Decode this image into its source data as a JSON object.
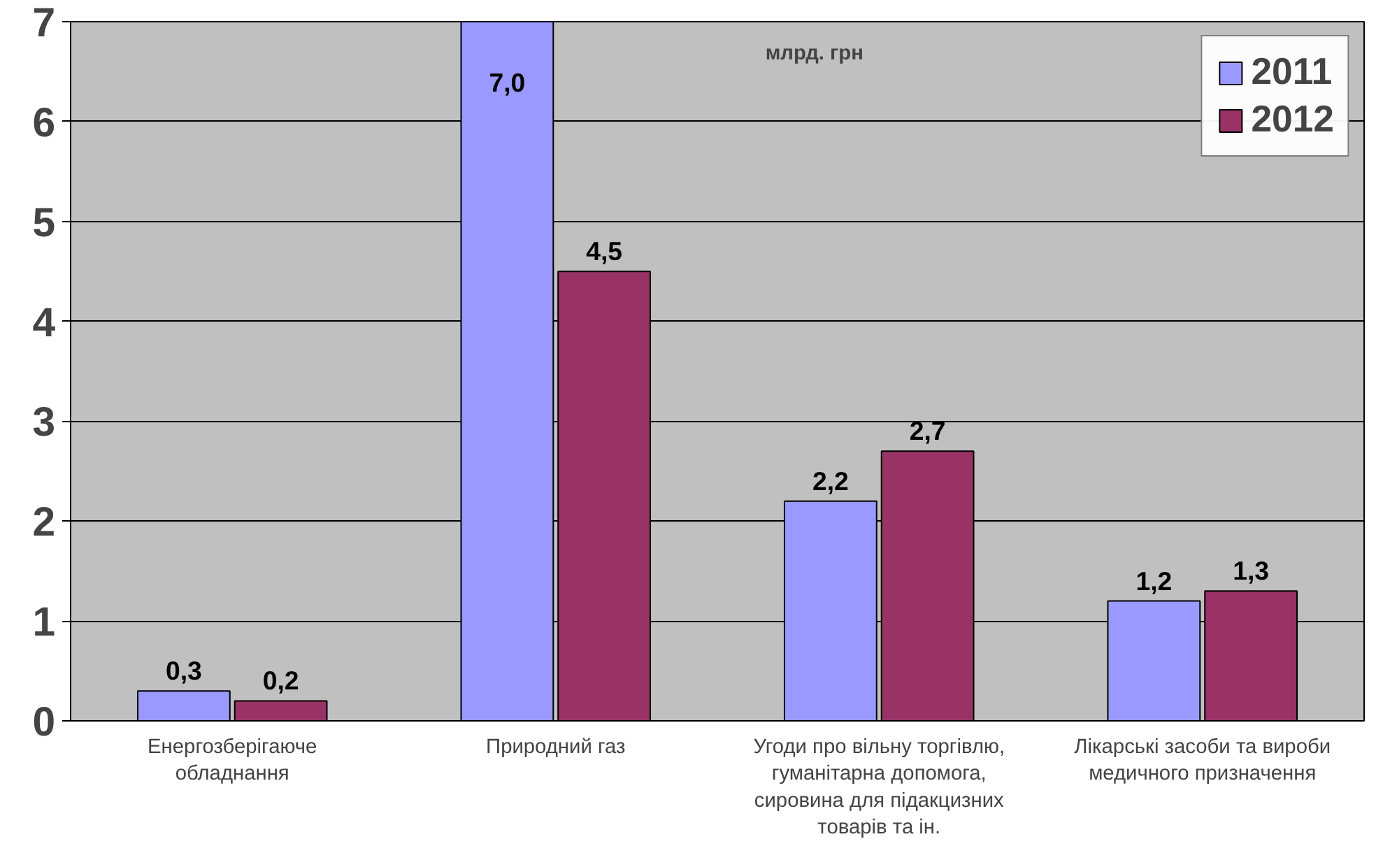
{
  "chart_data": {
    "type": "bar",
    "categories": [
      "Енергозберігаюче обладнання",
      "Природний газ",
      "Угоди про вільну торгівлю, гуманітарна допомога, сировина для підакцизних товарів та ін.",
      "Лікарські засоби та вироби медичного призначення"
    ],
    "series": [
      {
        "name": "2011",
        "color": "#9999ff",
        "values": [
          0.3,
          7.0,
          2.2,
          1.2
        ],
        "value_labels": [
          "0,3",
          "7,0",
          "2,2",
          "1,2"
        ]
      },
      {
        "name": "2012",
        "color": "#993366",
        "values": [
          0.2,
          4.5,
          2.7,
          1.3
        ],
        "value_labels": [
          "0,2",
          "4,5",
          "2,7",
          "1,3"
        ]
      }
    ],
    "ylim": [
      0,
      7
    ],
    "yticks": [
      0,
      1,
      2,
      3,
      4,
      5,
      6,
      7
    ],
    "grid": "y",
    "legend": "top right",
    "annotations": [
      "млрд. грн"
    ]
  }
}
